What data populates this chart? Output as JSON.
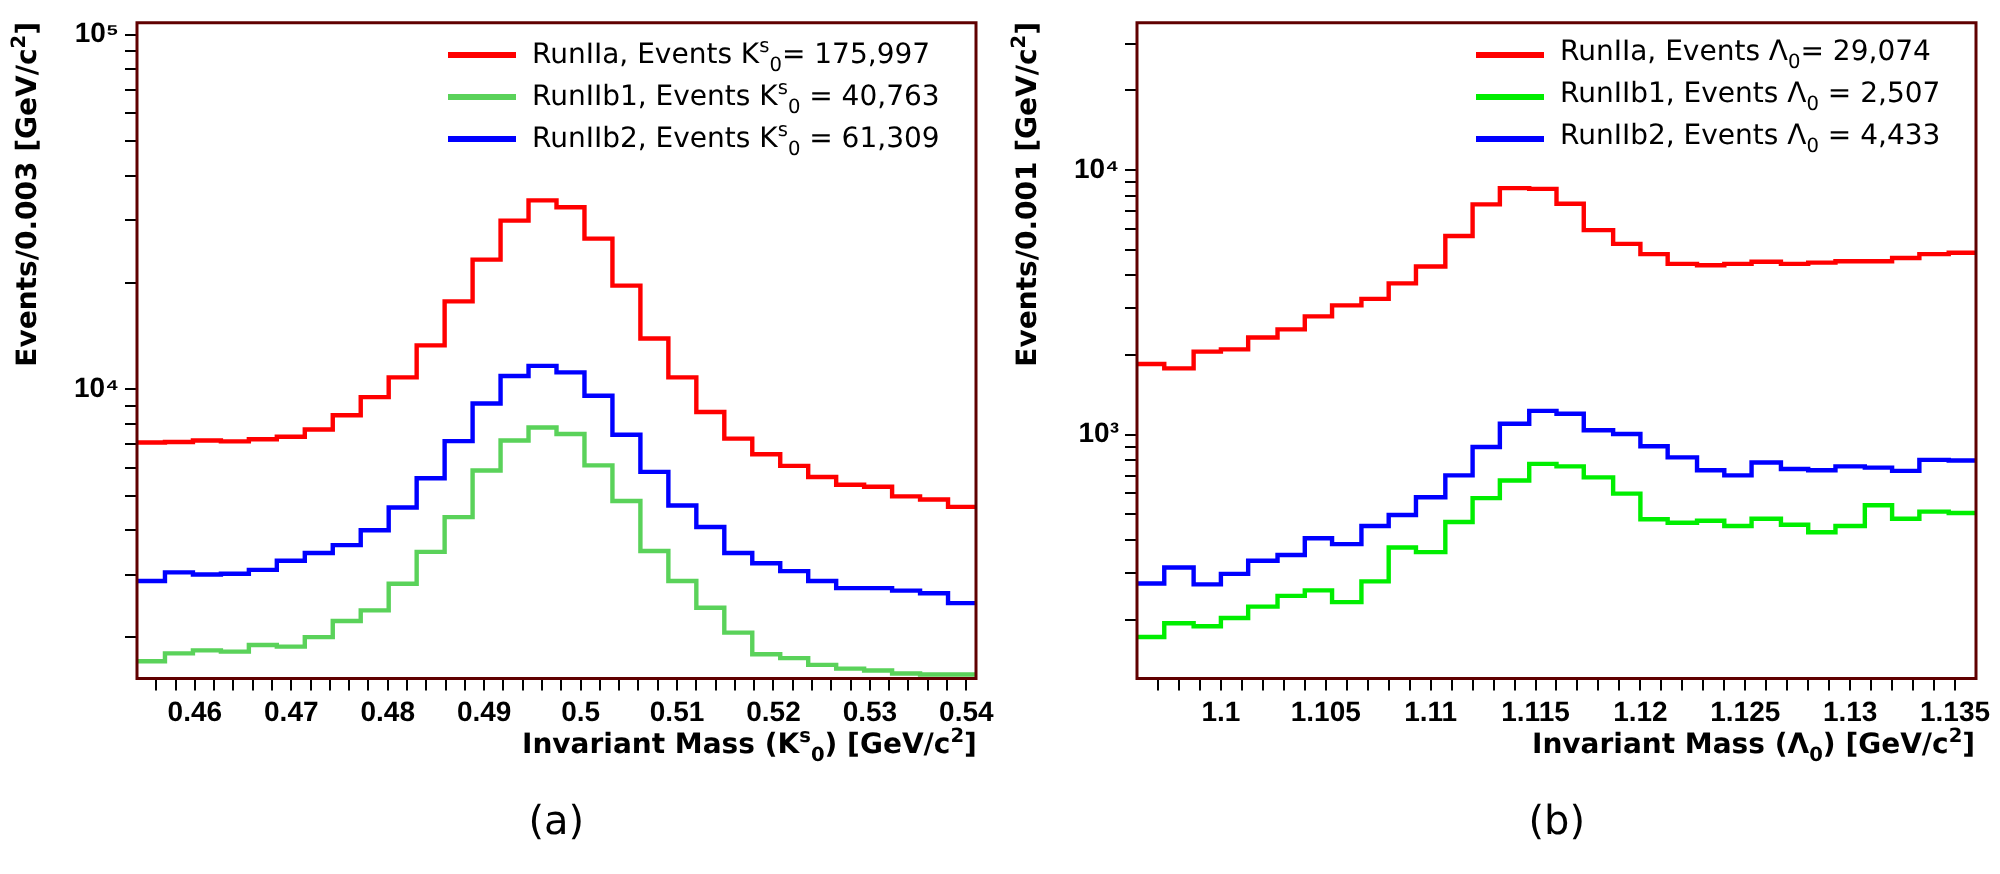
{
  "chart_data": [
    {
      "type": "histogram",
      "xlabel": "Invariant Mass (K$^{s}$$_{0}$) [GeV/c$^{2}$]",
      "ylabel": "Events/0.003 [GeV/c$^{2}$]",
      "log": "y",
      "legend": "top right",
      "annotations": [
        "(a)"
      ],
      "bins": [
        0.454,
        0.4569,
        0.4598,
        0.4627,
        0.4656,
        0.4685,
        0.4714,
        0.4743,
        0.4772,
        0.4801,
        0.483,
        0.4859,
        0.4888,
        0.4917,
        0.4946,
        0.4975,
        0.5004,
        0.5033,
        0.5062,
        0.5091,
        0.512,
        0.5149,
        0.5178,
        0.5207,
        0.5236,
        0.5265,
        0.5294,
        0.5323,
        0.5352,
        0.5381,
        0.541
      ],
      "xlim": [
        0.454,
        0.541
      ],
      "xticks": [
        {
          "value": 0.456,
          "label": null
        },
        {
          "value": 0.458,
          "label": null
        },
        0.46,
        {
          "value": 0.462,
          "label": null
        },
        {
          "value": 0.464,
          "label": null
        },
        {
          "value": 0.466,
          "label": null
        },
        {
          "value": 0.468,
          "label": null
        },
        0.47,
        {
          "value": 0.472,
          "label": null
        },
        {
          "value": 0.474,
          "label": null
        },
        {
          "value": 0.476,
          "label": null
        },
        {
          "value": 0.478,
          "label": null
        },
        0.48,
        {
          "value": 0.482,
          "label": null
        },
        {
          "value": 0.484,
          "label": null
        },
        {
          "value": 0.486,
          "label": null
        },
        {
          "value": 0.488,
          "label": null
        },
        0.49,
        {
          "value": 0.492,
          "label": null
        },
        {
          "value": 0.494,
          "label": null
        },
        {
          "value": 0.496,
          "label": null
        },
        {
          "value": 0.498,
          "label": null
        },
        0.5,
        {
          "value": 0.502,
          "label": null
        },
        {
          "value": 0.504,
          "label": null
        },
        {
          "value": 0.506,
          "label": null
        },
        {
          "value": 0.508,
          "label": null
        },
        0.51,
        {
          "value": 0.512,
          "label": null
        },
        {
          "value": 0.514,
          "label": null
        },
        {
          "value": 0.516,
          "label": null
        },
        {
          "value": 0.518,
          "label": null
        },
        0.52,
        {
          "value": 0.522,
          "label": null
        },
        {
          "value": 0.524,
          "label": null
        },
        {
          "value": 0.526,
          "label": null
        },
        {
          "value": 0.528,
          "label": null
        },
        0.53,
        {
          "value": 0.532,
          "label": null
        },
        {
          "value": 0.534,
          "label": null
        },
        {
          "value": 0.536,
          "label": null
        },
        {
          "value": 0.538,
          "label": null
        },
        0.54
      ],
      "ylim": [
        1530,
        108000
      ],
      "yticks": [
        {
          "value": 2000,
          "label": null
        },
        {
          "value": 3000,
          "label": null
        },
        {
          "value": 4000,
          "label": null
        },
        {
          "value": 5000,
          "label": null
        },
        {
          "value": 6000,
          "label": null
        },
        {
          "value": 7000,
          "label": null
        },
        {
          "value": 8000,
          "label": null
        },
        {
          "value": 9000,
          "label": null
        },
        {
          "value": 10000,
          "label": "10⁴"
        },
        {
          "value": 20000,
          "label": null
        },
        {
          "value": 30000,
          "label": null
        },
        {
          "value": 40000,
          "label": null
        },
        {
          "value": 50000,
          "label": null
        },
        {
          "value": 60000,
          "label": null
        },
        {
          "value": 70000,
          "label": null
        },
        {
          "value": 80000,
          "label": null
        },
        {
          "value": 90000,
          "label": null
        },
        {
          "value": 100000,
          "label": "10⁵"
        }
      ],
      "series": [
        {
          "name": "RunIIa, Events K$^{s}$$_{0}$= 175,997",
          "color": "#ff0000",
          "values": [
            7080,
            7100,
            7170,
            7130,
            7230,
            7350,
            7700,
            8450,
            9500,
            10800,
            13300,
            17700,
            23200,
            29900,
            34100,
            32600,
            26600,
            19600,
            13900,
            10800,
            8630,
            7260,
            6560,
            6080,
            5660,
            5380,
            5310,
            4990,
            4890,
            4660
          ]
        },
        {
          "name": "RunIIb1, Events K$^{s}$$_{0}$ = 40,763",
          "color": "#5ad25a",
          "values": [
            1710,
            1800,
            1835,
            1820,
            1900,
            1880,
            2000,
            2220,
            2380,
            2830,
            3480,
            4360,
            5900,
            7170,
            7800,
            7480,
            6100,
            4840,
            3500,
            2880,
            2420,
            2060,
            1790,
            1745,
            1670,
            1630,
            1610,
            1580,
            1570,
            1570
          ]
        },
        {
          "name": "RunIIb2, Events K$^{s}$$_{0}$ = 61,309",
          "color": "#0000ff",
          "values": [
            2880,
            3045,
            3005,
            3020,
            3095,
            3285,
            3455,
            3635,
            4005,
            4640,
            5610,
            7140,
            9115,
            10900,
            11640,
            11160,
            9590,
            7440,
            5850,
            4700,
            4090,
            3455,
            3230,
            3070,
            2880,
            2750,
            2750,
            2705,
            2660,
            2495
          ]
        }
      ]
    },
    {
      "type": "histogram",
      "xlabel": "Invariant Mass (Λ$_{0}$) [GeV/c$^{2}$]",
      "ylabel": "Events/0.001 [GeV/c$^{2}$]",
      "log": "y",
      "legend": "top right",
      "annotations": [
        "(b)"
      ],
      "bins": [
        1.096,
        1.0973,
        1.0987,
        1.1,
        1.1013,
        1.1027,
        1.104,
        1.1053,
        1.1067,
        1.108,
        1.1093,
        1.1107,
        1.112,
        1.1133,
        1.1147,
        1.116,
        1.1173,
        1.1187,
        1.12,
        1.1213,
        1.1227,
        1.124,
        1.1253,
        1.1267,
        1.128,
        1.1293,
        1.1307,
        1.132,
        1.1333,
        1.1347,
        1.136
      ],
      "xlim": [
        1.096,
        1.136
      ],
      "xticks": [
        {
          "value": 1.097,
          "label": null
        },
        {
          "value": 1.098,
          "label": null
        },
        {
          "value": 1.099,
          "label": null
        },
        1.1,
        {
          "value": 1.101,
          "label": null
        },
        {
          "value": 1.102,
          "label": null
        },
        {
          "value": 1.103,
          "label": null
        },
        {
          "value": 1.104,
          "label": null
        },
        1.105,
        {
          "value": 1.106,
          "label": null
        },
        {
          "value": 1.107,
          "label": null
        },
        {
          "value": 1.108,
          "label": null
        },
        {
          "value": 1.109,
          "label": null
        },
        1.11,
        {
          "value": 1.111,
          "label": null
        },
        {
          "value": 1.112,
          "label": null
        },
        {
          "value": 1.113,
          "label": null
        },
        {
          "value": 1.114,
          "label": null
        },
        1.115,
        {
          "value": 1.116,
          "label": null
        },
        {
          "value": 1.117,
          "label": null
        },
        {
          "value": 1.118,
          "label": null
        },
        {
          "value": 1.119,
          "label": null
        },
        1.12,
        {
          "value": 1.121,
          "label": null
        },
        {
          "value": 1.122,
          "label": null
        },
        {
          "value": 1.123,
          "label": null
        },
        {
          "value": 1.124,
          "label": null
        },
        1.125,
        {
          "value": 1.126,
          "label": null
        },
        {
          "value": 1.127,
          "label": null
        },
        {
          "value": 1.128,
          "label": null
        },
        {
          "value": 1.129,
          "label": null
        },
        1.13,
        {
          "value": 1.131,
          "label": null
        },
        {
          "value": 1.132,
          "label": null
        },
        {
          "value": 1.133,
          "label": null
        },
        {
          "value": 1.134,
          "label": null
        },
        1.135
      ],
      "ylim": [
        120,
        36000
      ],
      "yticks": [
        {
          "value": 200,
          "label": null
        },
        {
          "value": 300,
          "label": null
        },
        {
          "value": 400,
          "label": null
        },
        {
          "value": 500,
          "label": null
        },
        {
          "value": 600,
          "label": null
        },
        {
          "value": 700,
          "label": null
        },
        {
          "value": 800,
          "label": null
        },
        {
          "value": 900,
          "label": null
        },
        {
          "value": 1000,
          "label": "10³"
        },
        {
          "value": 2000,
          "label": null
        },
        {
          "value": 3000,
          "label": null
        },
        {
          "value": 4000,
          "label": null
        },
        {
          "value": 5000,
          "label": null
        },
        {
          "value": 6000,
          "label": null
        },
        {
          "value": 7000,
          "label": null
        },
        {
          "value": 8000,
          "label": null
        },
        {
          "value": 9000,
          "label": null
        },
        {
          "value": 10000,
          "label": "10⁴"
        },
        {
          "value": 20000,
          "label": null
        },
        {
          "value": 30000,
          "label": null
        }
      ],
      "series": [
        {
          "name": "RunIIa, Events Λ$_{0}$= 29,074",
          "color": "#ff0000",
          "values": [
            1850,
            1780,
            2060,
            2100,
            2330,
            2500,
            2800,
            3080,
            3260,
            3730,
            4320,
            5630,
            7420,
            8540,
            8490,
            7460,
            5930,
            5260,
            4810,
            4420,
            4370,
            4420,
            4500,
            4420,
            4470,
            4520,
            4520,
            4650,
            4810,
            4870
          ]
        },
        {
          "name": "RunIIb1, Events Λ$_{0}$ = 2,507",
          "color": "#00ee00",
          "values": [
            172,
            194,
            189,
            203,
            224,
            246,
            258,
            233,
            279,
            375,
            360,
            468,
            576,
            671,
            776,
            759,
            690,
            599,
            479,
            465,
            473,
            452,
            481,
            457,
            428,
            452,
            541,
            481,
            512,
            506
          ]
        },
        {
          "name": "RunIIb2, Events Λ$_{0}$ = 4,433",
          "color": "#0000ff",
          "values": [
            274,
            315,
            272,
            298,
            334,
            351,
            406,
            386,
            452,
            497,
            580,
            702,
            898,
            1100,
            1230,
            1200,
            1040,
            1006,
            904,
            821,
            734,
            702,
            785,
            742,
            734,
            759,
            751,
            730,
            803,
            799
          ]
        }
      ]
    }
  ]
}
